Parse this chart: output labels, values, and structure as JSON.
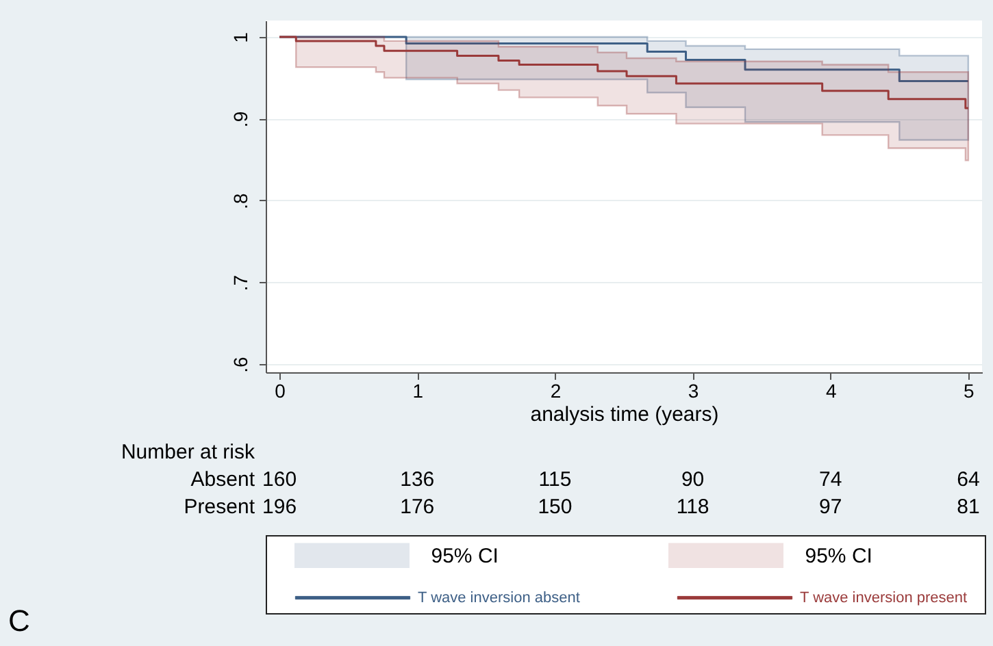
{
  "chart_data": {
    "type": "step",
    "xlabel": "analysis time (years)",
    "xlim": [
      -0.1,
      5.1
    ],
    "xticks": [
      0,
      1,
      2,
      3,
      4,
      5
    ],
    "ylim": [
      0.59,
      1.02
    ],
    "yticks": [
      {
        "value": 0.6,
        "label": ".6"
      },
      {
        "value": 0.7,
        "label": ".7"
      },
      {
        "value": 0.8,
        "label": ".8"
      },
      {
        "value": 0.9,
        "label": ".9"
      },
      {
        "value": 1,
        "label": "1"
      }
    ],
    "grid": "y",
    "legend": "bottom",
    "series": [
      {
        "name": "T wave inversion absent",
        "color": "#3d5f86",
        "x": [
          0,
          0.92,
          2.67,
          2.95,
          3.38,
          4.5,
          5
        ],
        "values": [
          1,
          0.992,
          0.982,
          0.972,
          0.96,
          0.946,
          0.946
        ],
        "lower": [
          1,
          0.948,
          0.932,
          0.914,
          0.896,
          0.874,
          0.874
        ],
        "upper": [
          1,
          1,
          0.995,
          0.989,
          0.985,
          0.977,
          0.977
        ]
      },
      {
        "name": "T wave inversion present",
        "color": "#9a3a3a",
        "x": [
          0,
          0.12,
          0.7,
          0.76,
          1.29,
          1.59,
          1.74,
          2.31,
          2.52,
          2.88,
          3.94,
          4.42,
          4.98,
          5
        ],
        "values": [
          1,
          0.995,
          0.989,
          0.983,
          0.977,
          0.971,
          0.966,
          0.958,
          0.952,
          0.943,
          0.934,
          0.924,
          0.913,
          0.913
        ],
        "lower": [
          1,
          0.963,
          0.957,
          0.95,
          0.943,
          0.935,
          0.926,
          0.916,
          0.906,
          0.894,
          0.88,
          0.864,
          0.849,
          0.849
        ],
        "upper": [
          1,
          1,
          1,
          0.995,
          0.995,
          0.988,
          0.988,
          0.981,
          0.974,
          0.97,
          0.966,
          0.957,
          0.957,
          0.957
        ]
      }
    ],
    "annotations": [
      "Number at risk",
      "Absent",
      "160",
      "136",
      "115",
      "90",
      "74",
      "64",
      "Present",
      "196",
      "176",
      "150",
      "118",
      "97",
      "81",
      "95% CI",
      "95% CI",
      "C"
    ]
  }
}
